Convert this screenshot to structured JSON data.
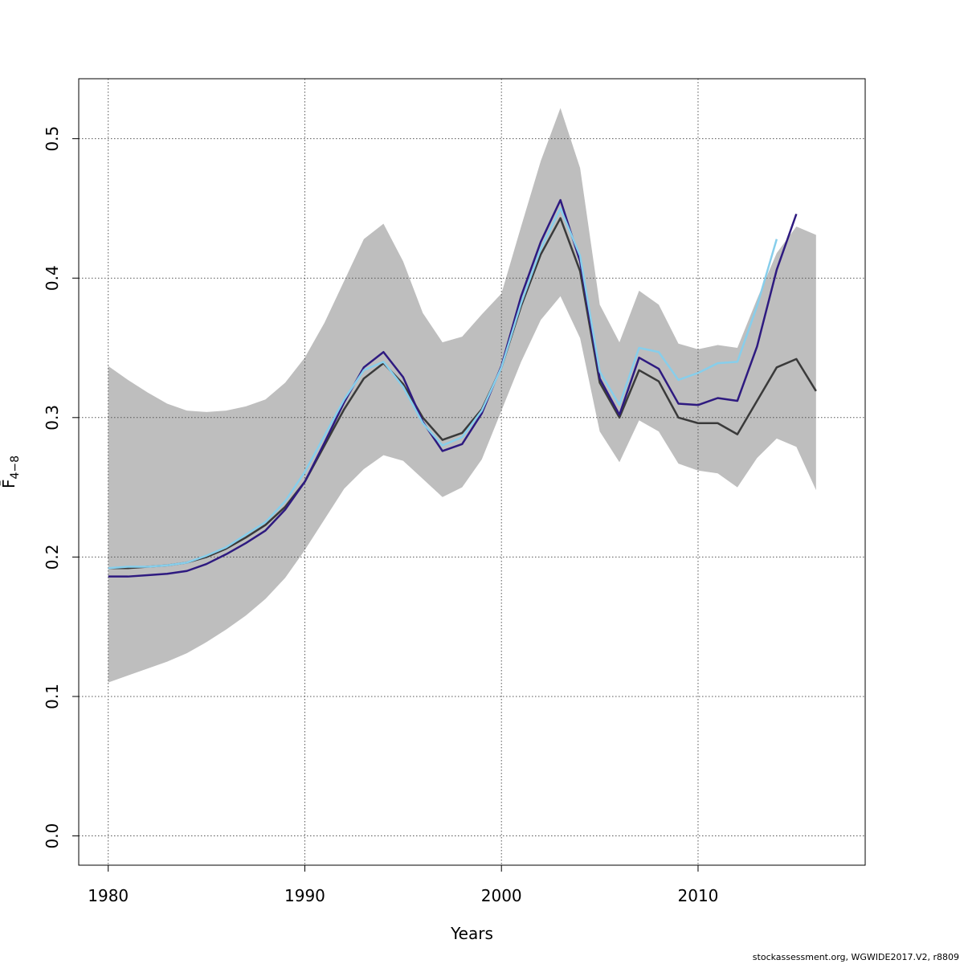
{
  "chart_data": {
    "type": "line",
    "xlabel": "Years",
    "ylabel": "F̄",
    "ylabel_subscript": "4−8",
    "xlim": [
      1978.5,
      2018.5
    ],
    "ylim": [
      -0.021,
      0.543
    ],
    "x_ticks": [
      1980,
      1990,
      2000,
      2010
    ],
    "y_ticks": [
      0.0,
      0.1,
      0.2,
      0.3,
      0.4,
      0.5
    ],
    "y_tick_labels": [
      "0.0",
      "0.1",
      "0.2",
      "0.3",
      "0.4",
      "0.5"
    ],
    "grid": true,
    "colors": {
      "band": "#bebebe",
      "current": "#3a3a3a",
      "peel1": "#2e1a80",
      "peel2": "#87ceeb"
    },
    "confidence_band": {
      "x": [
        1980,
        1981,
        1982,
        1983,
        1984,
        1985,
        1986,
        1987,
        1988,
        1989,
        1990,
        1991,
        1992,
        1993,
        1994,
        1995,
        1996,
        1997,
        1998,
        1999,
        2000,
        2001,
        2002,
        2003,
        2004,
        2005,
        2006,
        2007,
        2008,
        2009,
        2010,
        2011,
        2012,
        2013,
        2014,
        2015,
        2016
      ],
      "lower": [
        0.11,
        0.115,
        0.12,
        0.125,
        0.131,
        0.139,
        0.148,
        0.158,
        0.17,
        0.185,
        0.205,
        0.227,
        0.249,
        0.263,
        0.273,
        0.269,
        0.256,
        0.243,
        0.25,
        0.27,
        0.305,
        0.34,
        0.37,
        0.387,
        0.357,
        0.29,
        0.268,
        0.298,
        0.29,
        0.267,
        0.262,
        0.26,
        0.25,
        0.271,
        0.285,
        0.279,
        0.248
      ],
      "upper": [
        0.337,
        0.327,
        0.318,
        0.31,
        0.305,
        0.304,
        0.305,
        0.308,
        0.313,
        0.325,
        0.343,
        0.368,
        0.398,
        0.428,
        0.439,
        0.412,
        0.375,
        0.354,
        0.358,
        0.374,
        0.389,
        0.437,
        0.484,
        0.522,
        0.479,
        0.381,
        0.354,
        0.391,
        0.381,
        0.353,
        0.349,
        0.352,
        0.35,
        0.385,
        0.418,
        0.437,
        0.431
      ]
    },
    "series": [
      {
        "key": "current",
        "x": [
          1980,
          1981,
          1982,
          1983,
          1984,
          1985,
          1986,
          1987,
          1988,
          1989,
          1990,
          1991,
          1992,
          1993,
          1994,
          1995,
          1996,
          1997,
          1998,
          1999,
          2000,
          2001,
          2002,
          2003,
          2004,
          2005,
          2006,
          2007,
          2008,
          2009,
          2010,
          2011,
          2012,
          2013,
          2014,
          2015,
          2016
        ],
        "values": [
          0.192,
          0.192,
          0.193,
          0.194,
          0.196,
          0.2,
          0.206,
          0.214,
          0.223,
          0.236,
          0.254,
          0.28,
          0.306,
          0.328,
          0.339,
          0.324,
          0.3,
          0.284,
          0.289,
          0.306,
          0.336,
          0.38,
          0.417,
          0.443,
          0.405,
          0.325,
          0.3,
          0.334,
          0.326,
          0.3,
          0.296,
          0.296,
          0.288,
          0.312,
          0.336,
          0.342,
          0.319
        ]
      },
      {
        "key": "peel1",
        "x": [
          1980,
          1981,
          1982,
          1983,
          1984,
          1985,
          1986,
          1987,
          1988,
          1989,
          1990,
          1991,
          1992,
          1993,
          1994,
          1995,
          1996,
          1997,
          1998,
          1999,
          2000,
          2001,
          2002,
          2003,
          2004,
          2005,
          2006,
          2007,
          2008,
          2009,
          2010,
          2011,
          2012,
          2013,
          2014,
          2015
        ],
        "values": [
          0.186,
          0.186,
          0.187,
          0.188,
          0.19,
          0.195,
          0.202,
          0.21,
          0.219,
          0.234,
          0.254,
          0.282,
          0.311,
          0.336,
          0.347,
          0.329,
          0.297,
          0.276,
          0.281,
          0.303,
          0.337,
          0.387,
          0.426,
          0.456,
          0.412,
          0.328,
          0.302,
          0.343,
          0.335,
          0.31,
          0.309,
          0.314,
          0.312,
          0.351,
          0.406,
          0.446
        ]
      },
      {
        "key": "peel2",
        "x": [
          1980,
          1981,
          1982,
          1983,
          1984,
          1985,
          1986,
          1987,
          1988,
          1989,
          1990,
          1991,
          1992,
          1993,
          1994,
          1995,
          1996,
          1997,
          1998,
          1999,
          2000,
          2001,
          2002,
          2003,
          2004,
          2005,
          2006,
          2007,
          2008,
          2009,
          2010,
          2011,
          2012,
          2013,
          2014
        ],
        "values": [
          0.192,
          0.193,
          0.193,
          0.194,
          0.196,
          0.201,
          0.207,
          0.216,
          0.225,
          0.24,
          0.261,
          0.287,
          0.313,
          0.334,
          0.34,
          0.322,
          0.296,
          0.28,
          0.286,
          0.305,
          0.336,
          0.382,
          0.421,
          0.45,
          0.416,
          0.333,
          0.309,
          0.35,
          0.347,
          0.327,
          0.332,
          0.339,
          0.34,
          0.38,
          0.428
        ]
      }
    ]
  },
  "footer": "stockassessment.org, WGWIDE2017.V2, r8809"
}
